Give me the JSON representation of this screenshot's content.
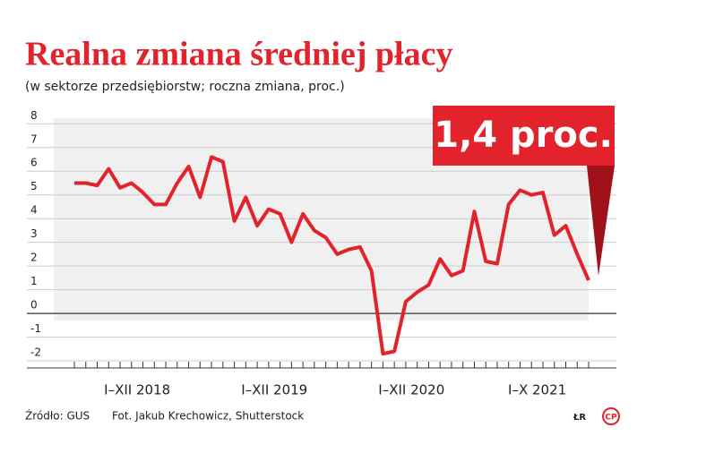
{
  "chart_data": {
    "type": "line",
    "title": "Realna zmiana średniej płacy",
    "subtitle": "(w sektorze przedsiębiorstw; roczna zmiana, proc.)",
    "annotation": "1,4 proc.",
    "source": "Źródło: GUS",
    "credit": "Fot. Jakub Krechowicz, Shutterstock",
    "logo": "ŁR",
    "logo2": "CP",
    "categories": [
      null,
      null,
      null,
      null,
      null,
      null,
      null,
      null,
      null,
      null,
      null,
      null,
      null,
      null,
      null,
      null,
      null,
      null,
      null,
      null,
      null,
      null,
      null,
      null,
      null,
      null,
      null,
      null,
      null,
      null,
      null,
      null,
      null,
      null,
      null,
      null,
      null,
      null,
      null,
      null,
      null,
      null,
      null,
      null,
      null,
      null
    ],
    "periods": [
      {
        "label": "I–XII 2018",
        "months": 12
      },
      {
        "label": "I–XII 2019",
        "months": 12
      },
      {
        "label": "I–XII 2020",
        "months": 12
      },
      {
        "label": "I–X 2021",
        "months": 10
      }
    ],
    "series": [
      {
        "name": null,
        "color": "#e3232c",
        "values": [
          5.5,
          5.5,
          5.4,
          6.1,
          5.3,
          5.5,
          5.1,
          4.6,
          4.6,
          5.5,
          6.2,
          4.9,
          6.6,
          6.4,
          3.9,
          4.9,
          3.7,
          4.4,
          4.2,
          3.0,
          4.2,
          3.5,
          3.2,
          2.5,
          2.7,
          2.8,
          1.8,
          -1.7,
          -1.6,
          0.5,
          0.9,
          1.2,
          2.3,
          1.6,
          1.8,
          4.3,
          2.2,
          2.1,
          4.6,
          5.2,
          5.0,
          5.1,
          3.3,
          3.7,
          2.5,
          1.4
        ]
      }
    ],
    "ylim": [
      -2.3,
      8.2
    ],
    "yticks": [
      8,
      7,
      6,
      5,
      4,
      3,
      2,
      1,
      0,
      -1,
      -2
    ],
    "grid": true
  }
}
